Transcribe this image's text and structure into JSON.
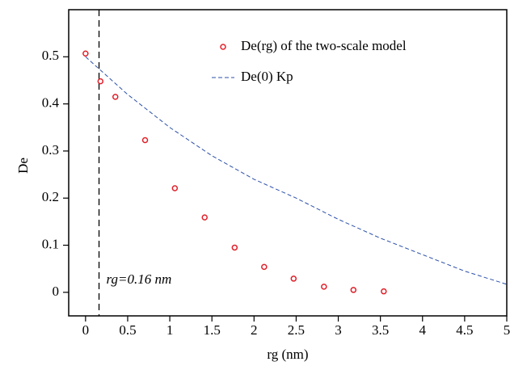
{
  "chart_data": {
    "type": "scatter",
    "xlabel": "rg (nm)",
    "ylabel": "De",
    "xlim": [
      -0.2,
      5
    ],
    "ylim": [
      -0.05,
      0.6
    ],
    "xticks": [
      0,
      0.5,
      1,
      1.5,
      2,
      2.5,
      3,
      3.5,
      4,
      4.5,
      5
    ],
    "yticks": [
      0,
      0.1,
      0.2,
      0.3,
      0.4,
      0.5
    ],
    "series": [
      {
        "name": "De(rg) of the two-scale model",
        "color": "#e0202a",
        "kind": "points",
        "x": [
          0,
          0.177,
          0.354,
          0.707,
          1.06,
          1.414,
          1.77,
          2.12,
          2.47,
          2.83,
          3.18,
          3.54
        ],
        "values": [
          0.507,
          0.448,
          0.415,
          0.323,
          0.221,
          0.159,
          0.095,
          0.054,
          0.029,
          0.012,
          0.005,
          0.002
        ]
      },
      {
        "name": "De(0) Kp",
        "color": "#2b4fa8",
        "kind": "dashed-line",
        "x": [
          0,
          0.5,
          1,
          1.5,
          2,
          2.5,
          3,
          3.5,
          4,
          4.5,
          5
        ],
        "values": [
          0.5,
          0.42,
          0.35,
          0.29,
          0.24,
          0.2,
          0.155,
          0.115,
          0.08,
          0.045,
          0.017
        ]
      }
    ],
    "annotations": [
      {
        "text": "rg=0.16 nm",
        "x": 0.16
      }
    ],
    "legend": "upper-right"
  }
}
